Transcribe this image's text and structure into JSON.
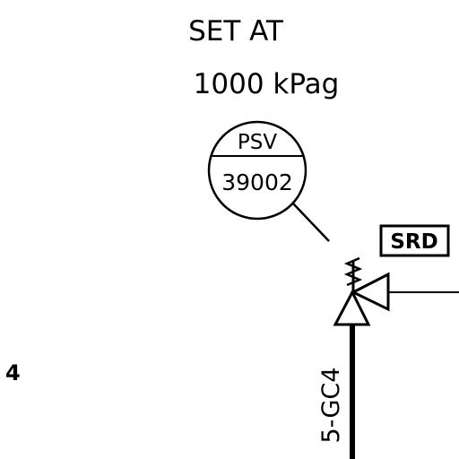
{
  "set_point": {
    "line1": "SET AT",
    "line2": "1000 kPag"
  },
  "instrument": {
    "type": "PSV",
    "number": "39002"
  },
  "tag_box": {
    "label": "SRD"
  },
  "line_number": {
    "label": "5-GC4"
  },
  "edge_fragment": {
    "label": "4"
  },
  "colors": {
    "ink": "#000000",
    "paper": "#ffffff"
  }
}
